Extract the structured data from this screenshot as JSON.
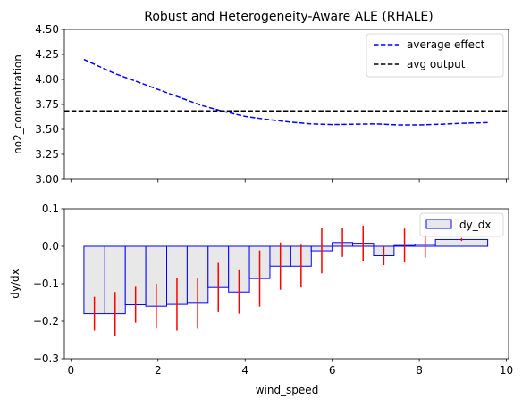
{
  "chart_data": [
    {
      "type": "line",
      "title": "Robust and Heterogeneity-Aware ALE (RHALE)",
      "xlabel": "",
      "ylabel": "no2_concentration",
      "xlim": [
        -0.15,
        10.05
      ],
      "ylim": [
        3.0,
        4.5
      ],
      "yticks": [
        "3.00",
        "3.25",
        "3.50",
        "3.75",
        "4.00",
        "4.25",
        "4.50"
      ],
      "legend_position": "top-right",
      "series": [
        {
          "name": "average effect",
          "style": "dashed",
          "color": "#0000ff",
          "x": [
            0.3,
            0.6,
            1.0,
            1.5,
            2.0,
            2.5,
            3.0,
            3.5,
            4.0,
            4.5,
            5.0,
            5.5,
            6.0,
            6.5,
            7.0,
            7.5,
            8.0,
            8.5,
            9.0,
            9.57
          ],
          "y": [
            4.2,
            4.14,
            4.06,
            3.98,
            3.9,
            3.82,
            3.74,
            3.68,
            3.63,
            3.6,
            3.575,
            3.555,
            3.548,
            3.552,
            3.555,
            3.545,
            3.545,
            3.552,
            3.562,
            3.568
          ]
        },
        {
          "name": "avg output",
          "style": "dashed",
          "color": "#000000",
          "x": [
            -0.15,
            10.05
          ],
          "y": [
            3.685,
            3.685
          ]
        }
      ]
    },
    {
      "type": "bar",
      "xlabel": "wind_speed",
      "ylabel": "dy/dx",
      "xlim": [
        -0.15,
        10.05
      ],
      "ylim": [
        -0.3,
        0.1
      ],
      "xticks": [
        "0",
        "2",
        "4",
        "6",
        "8",
        "10"
      ],
      "yticks": [
        "−0.3",
        "−0.2",
        "−0.1",
        "0.0",
        "0.1"
      ],
      "legend_position": "top-right",
      "series": [
        {
          "name": "dy_dx",
          "fill": "#e8e8e8",
          "edge": "#0000ff",
          "errorbar_color": "#ff0000",
          "bars": [
            {
              "x0": 0.3,
              "x1": 0.78,
              "value": -0.18,
              "err": 0.045
            },
            {
              "x0": 0.78,
              "x1": 1.25,
              "value": -0.18,
              "err": 0.058
            },
            {
              "x0": 1.25,
              "x1": 1.72,
              "value": -0.156,
              "err": 0.048
            },
            {
              "x0": 1.72,
              "x1": 2.2,
              "value": -0.16,
              "err": 0.06
            },
            {
              "x0": 2.2,
              "x1": 2.67,
              "value": -0.155,
              "err": 0.07
            },
            {
              "x0": 2.67,
              "x1": 3.15,
              "value": -0.152,
              "err": 0.068
            },
            {
              "x0": 3.15,
              "x1": 3.62,
              "value": -0.11,
              "err": 0.066
            },
            {
              "x0": 3.62,
              "x1": 4.1,
              "value": -0.122,
              "err": 0.058
            },
            {
              "x0": 4.1,
              "x1": 4.57,
              "value": -0.086,
              "err": 0.075
            },
            {
              "x0": 4.57,
              "x1": 5.05,
              "value": -0.053,
              "err": 0.063
            },
            {
              "x0": 5.05,
              "x1": 5.52,
              "value": -0.053,
              "err": 0.057
            },
            {
              "x0": 5.52,
              "x1": 6.0,
              "value": -0.012,
              "err": 0.06
            },
            {
              "x0": 6.0,
              "x1": 6.47,
              "value": 0.01,
              "err": 0.038
            },
            {
              "x0": 6.47,
              "x1": 6.95,
              "value": 0.008,
              "err": 0.047
            },
            {
              "x0": 6.95,
              "x1": 7.42,
              "value": -0.025,
              "err": 0.025
            },
            {
              "x0": 7.42,
              "x1": 7.9,
              "value": 0.002,
              "err": 0.045
            },
            {
              "x0": 7.9,
              "x1": 8.37,
              "value": 0.005,
              "err": 0.035
            },
            {
              "x0": 8.37,
              "x1": 9.57,
              "value": 0.018,
              "err": 0.004
            }
          ]
        }
      ]
    }
  ]
}
